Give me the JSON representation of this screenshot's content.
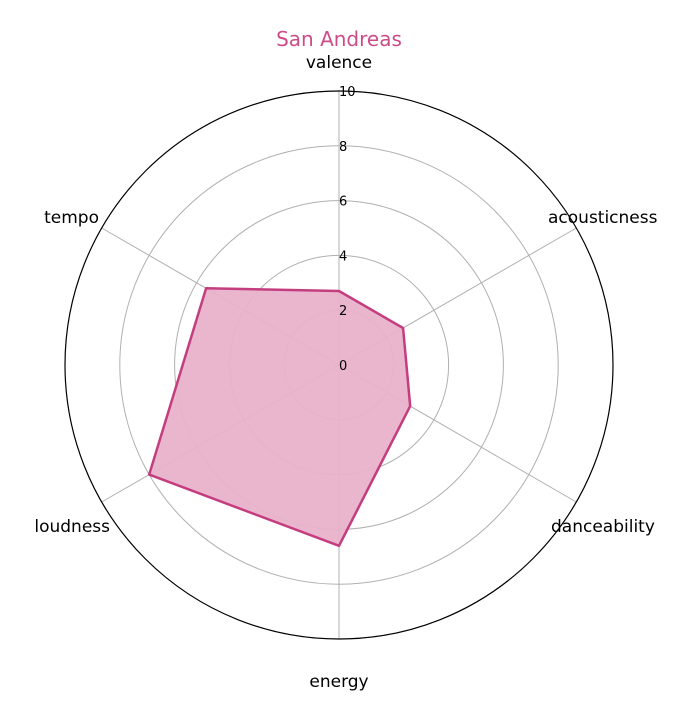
{
  "chart_data": {
    "type": "radar",
    "title": "San Andreas",
    "axes": [
      "valence",
      "acousticness",
      "danceability",
      "energy",
      "loudness",
      "tempo"
    ],
    "values": [
      2.7,
      2.7,
      3.0,
      6.6,
      8.0,
      5.6
    ],
    "rlim": [
      0,
      10
    ],
    "r_ticks": [
      "0",
      "2",
      "4",
      "6",
      "8",
      "10"
    ],
    "grid": true,
    "colors": {
      "title": "#cc4c88",
      "line": "#c43d7f",
      "fill": "#e8b2ca",
      "grid": "#b0b0b0",
      "outer": "#000000"
    }
  }
}
